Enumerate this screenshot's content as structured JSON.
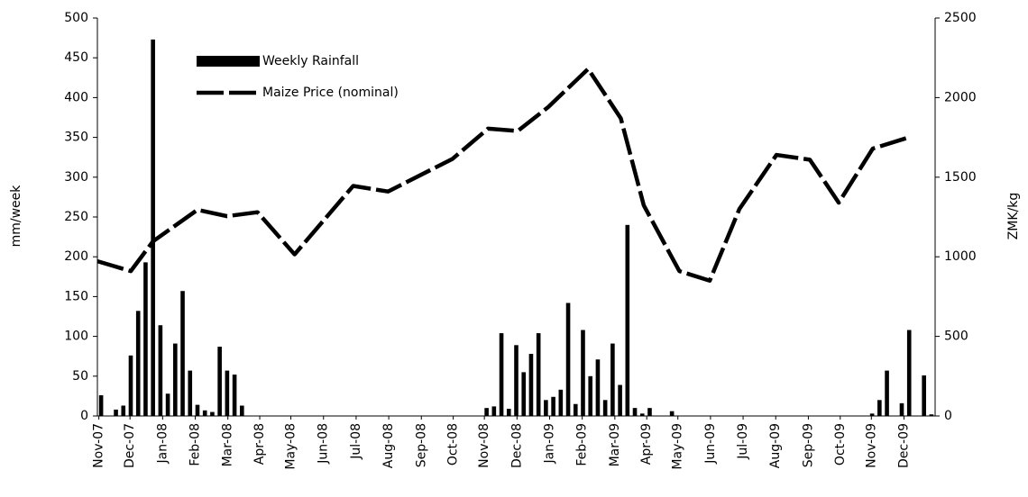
{
  "chart_data": {
    "type": "combo",
    "ylabel": "mm/week",
    "y2label": "ZMK/kg",
    "xlim": [
      0,
      113
    ],
    "ylim": [
      0,
      500
    ],
    "y2lim": [
      0,
      2500
    ],
    "yticks": [
      0,
      50,
      100,
      150,
      200,
      250,
      300,
      350,
      400,
      450,
      500
    ],
    "y2ticks": [
      0,
      500,
      1000,
      1500,
      2000,
      2500
    ],
    "xticks": [
      {
        "value": 0.2,
        "label": "Nov-07"
      },
      {
        "value": 4.4,
        "label": "Dec-07"
      },
      {
        "value": 8.8,
        "label": "Jan-08"
      },
      {
        "value": 13.2,
        "label": "Feb-08"
      },
      {
        "value": 17.6,
        "label": "Mar-08"
      },
      {
        "value": 21.9,
        "label": "Apr-08"
      },
      {
        "value": 26.1,
        "label": "May-08"
      },
      {
        "value": 30.5,
        "label": "Jun-08"
      },
      {
        "value": 34.9,
        "label": "Jul-08"
      },
      {
        "value": 39.3,
        "label": "Aug-08"
      },
      {
        "value": 43.7,
        "label": "Sep-08"
      },
      {
        "value": 48.0,
        "label": "Oct-08"
      },
      {
        "value": 52.2,
        "label": "Nov-08"
      },
      {
        "value": 56.6,
        "label": "Dec-08"
      },
      {
        "value": 61.0,
        "label": "Jan-09"
      },
      {
        "value": 65.4,
        "label": "Feb-09"
      },
      {
        "value": 69.8,
        "label": "Mar-09"
      },
      {
        "value": 74.1,
        "label": "Apr-09"
      },
      {
        "value": 78.3,
        "label": "May-09"
      },
      {
        "value": 82.7,
        "label": "Jun-09"
      },
      {
        "value": 87.1,
        "label": "Jul-09"
      },
      {
        "value": 91.5,
        "label": "Aug-09"
      },
      {
        "value": 95.9,
        "label": "Sep-09"
      },
      {
        "value": 100.2,
        "label": "Oct-09"
      },
      {
        "value": 104.4,
        "label": "Nov-09"
      },
      {
        "value": 108.8,
        "label": "Dec-09"
      }
    ],
    "legend": "upper left",
    "series": [
      {
        "name": "Weekly Rainfall",
        "type": "bar",
        "color": "#000000",
        "x": [
          0.5,
          2.5,
          3.5,
          4.5,
          5.5,
          6.5,
          7.5,
          8.5,
          9.5,
          10.5,
          11.5,
          12.5,
          13.5,
          14.5,
          15.5,
          16.5,
          17.5,
          18.5,
          19.5,
          52.5,
          53.5,
          54.5,
          55.5,
          56.5,
          57.5,
          58.5,
          59.5,
          60.5,
          61.5,
          62.5,
          63.5,
          64.5,
          65.5,
          66.5,
          67.5,
          68.5,
          69.5,
          70.5,
          71.5,
          72.5,
          73.5,
          74.5,
          77.5,
          104.5,
          105.5,
          106.5,
          108.5,
          109.5,
          111.5,
          112.5
        ],
        "values": [
          26,
          8,
          13,
          76,
          132,
          193,
          473,
          114,
          28,
          91,
          157,
          57,
          14,
          7,
          5,
          87,
          57,
          52,
          13,
          10,
          12,
          104,
          9,
          89,
          55,
          78,
          104,
          20,
          24,
          33,
          142,
          15,
          108,
          50,
          71,
          20,
          91,
          39,
          240,
          10,
          3,
          10,
          6,
          3,
          20,
          57,
          16,
          108,
          51,
          2
        ]
      },
      {
        "name": "Maize Price (nominal)",
        "type": "line",
        "axis": "y2",
        "color": "#000000",
        "x": [
          0,
          4.5,
          7.5,
          13.5,
          17.5,
          21.6,
          26.6,
          34.5,
          39.2,
          47.9,
          52.7,
          56.7,
          60.8,
          66.2,
          70.6,
          73.7,
          78.5,
          82.6,
          86.6,
          91.6,
          96.1,
          100.0,
          104.6,
          109.1
        ],
        "values": [
          972,
          910,
          1097,
          1295,
          1255,
          1280,
          1015,
          1445,
          1410,
          1615,
          1805,
          1790,
          1940,
          2180,
          1870,
          1323,
          910,
          850,
          1300,
          1640,
          1610,
          1340,
          1680,
          1745
        ]
      }
    ]
  }
}
